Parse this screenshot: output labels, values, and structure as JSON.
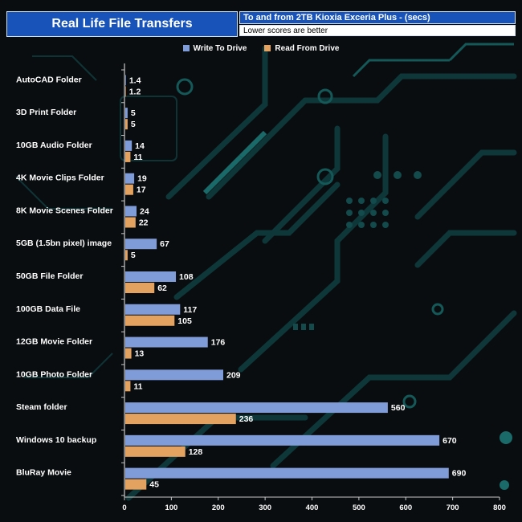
{
  "header": {
    "title": "Real Life File Transfers",
    "subtitle": "To and from 2TB Kioxia Exceria Plus - (secs)",
    "note": "Lower scores are better"
  },
  "colors": {
    "write": "#7f9bd8",
    "read": "#e3a25f",
    "title_bg": "#1753b8"
  },
  "chart_data": {
    "type": "bar",
    "orientation": "horizontal",
    "title": "Real Life File Transfers",
    "subtitle": "To and from 2TB Kioxia Exceria Plus - (secs)",
    "categories": [
      "AutoCAD Folder",
      "3D Print Folder",
      "10GB Audio Folder",
      "4K Movie Clips Folder",
      "8K Movie Scenes Folder",
      "5GB (1.5bn pixel) image",
      "50GB File Folder",
      "100GB Data File",
      "12GB Movie Folder",
      "10GB Photo Folder",
      "Steam folder",
      "Windows 10 backup",
      "BluRay Movie"
    ],
    "series": [
      {
        "name": "Write To  Drive",
        "values": [
          1.4,
          5,
          14,
          19,
          24,
          67,
          108,
          117,
          176,
          209,
          560,
          670,
          690
        ]
      },
      {
        "name": "Read From  Drive",
        "values": [
          1.2,
          5,
          11,
          17,
          22,
          5,
          62,
          105,
          13,
          11,
          236,
          128,
          45
        ]
      }
    ],
    "xlim": [
      0,
      800
    ],
    "xticks": [
      0,
      100,
      200,
      300,
      400,
      500,
      600,
      700,
      800
    ],
    "legend": "top-center",
    "grid": false
  }
}
